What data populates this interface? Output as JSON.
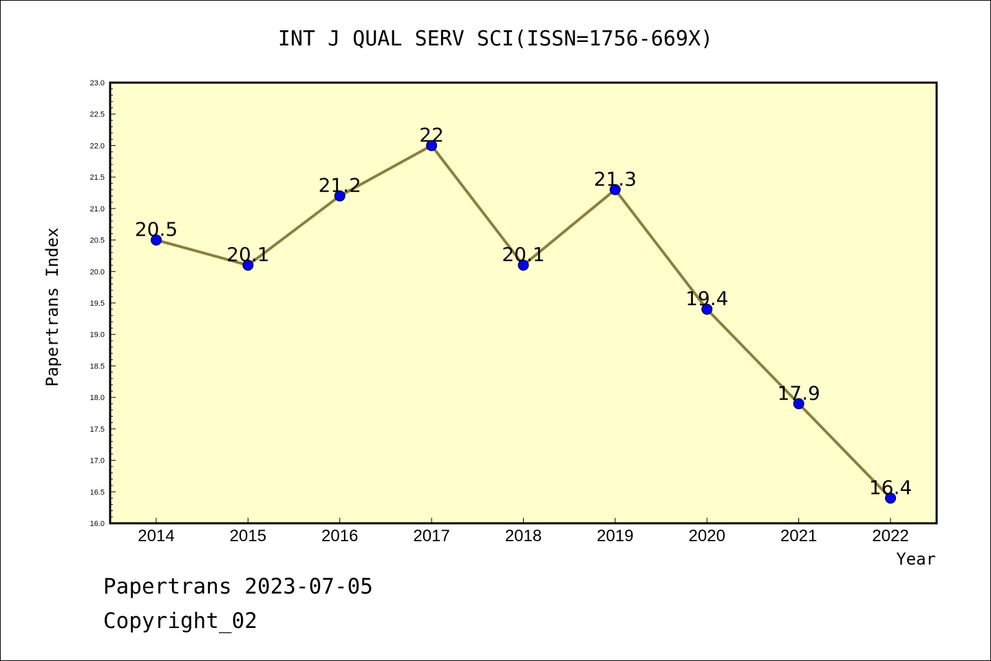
{
  "chart_data": {
    "type": "line",
    "title": "INT J QUAL SERV SCI(ISSN=1756-669X)",
    "xlabel": "Year",
    "ylabel": "Papertrans Index",
    "categories": [
      "2014",
      "2015",
      "2016",
      "2017",
      "2018",
      "2019",
      "2020",
      "2021",
      "2022"
    ],
    "series": [
      {
        "values": [
          20.5,
          20.1,
          21.2,
          22.0,
          20.1,
          21.3,
          19.4,
          17.9,
          16.4
        ],
        "labels": [
          "20.5",
          "20.1",
          "21.2",
          "22",
          "20.1",
          "21.3",
          "19.4",
          "17.9",
          "16.4"
        ]
      }
    ],
    "ylim": [
      16.0,
      23.0
    ],
    "yticks": [
      "16.0",
      "16.5",
      "17.0",
      "17.5",
      "18.0",
      "18.5",
      "19.0",
      "19.5",
      "20.0",
      "20.5",
      "21.0",
      "21.5",
      "22.0",
      "22.5",
      "23.0"
    ],
    "grid": false,
    "colors": {
      "plot_background": "#ffffcc",
      "line": "#8b7f3a",
      "marker": "#0000ff"
    }
  },
  "footer": {
    "line1": "Papertrans 2023-07-05",
    "line2": "Copyright_02"
  }
}
